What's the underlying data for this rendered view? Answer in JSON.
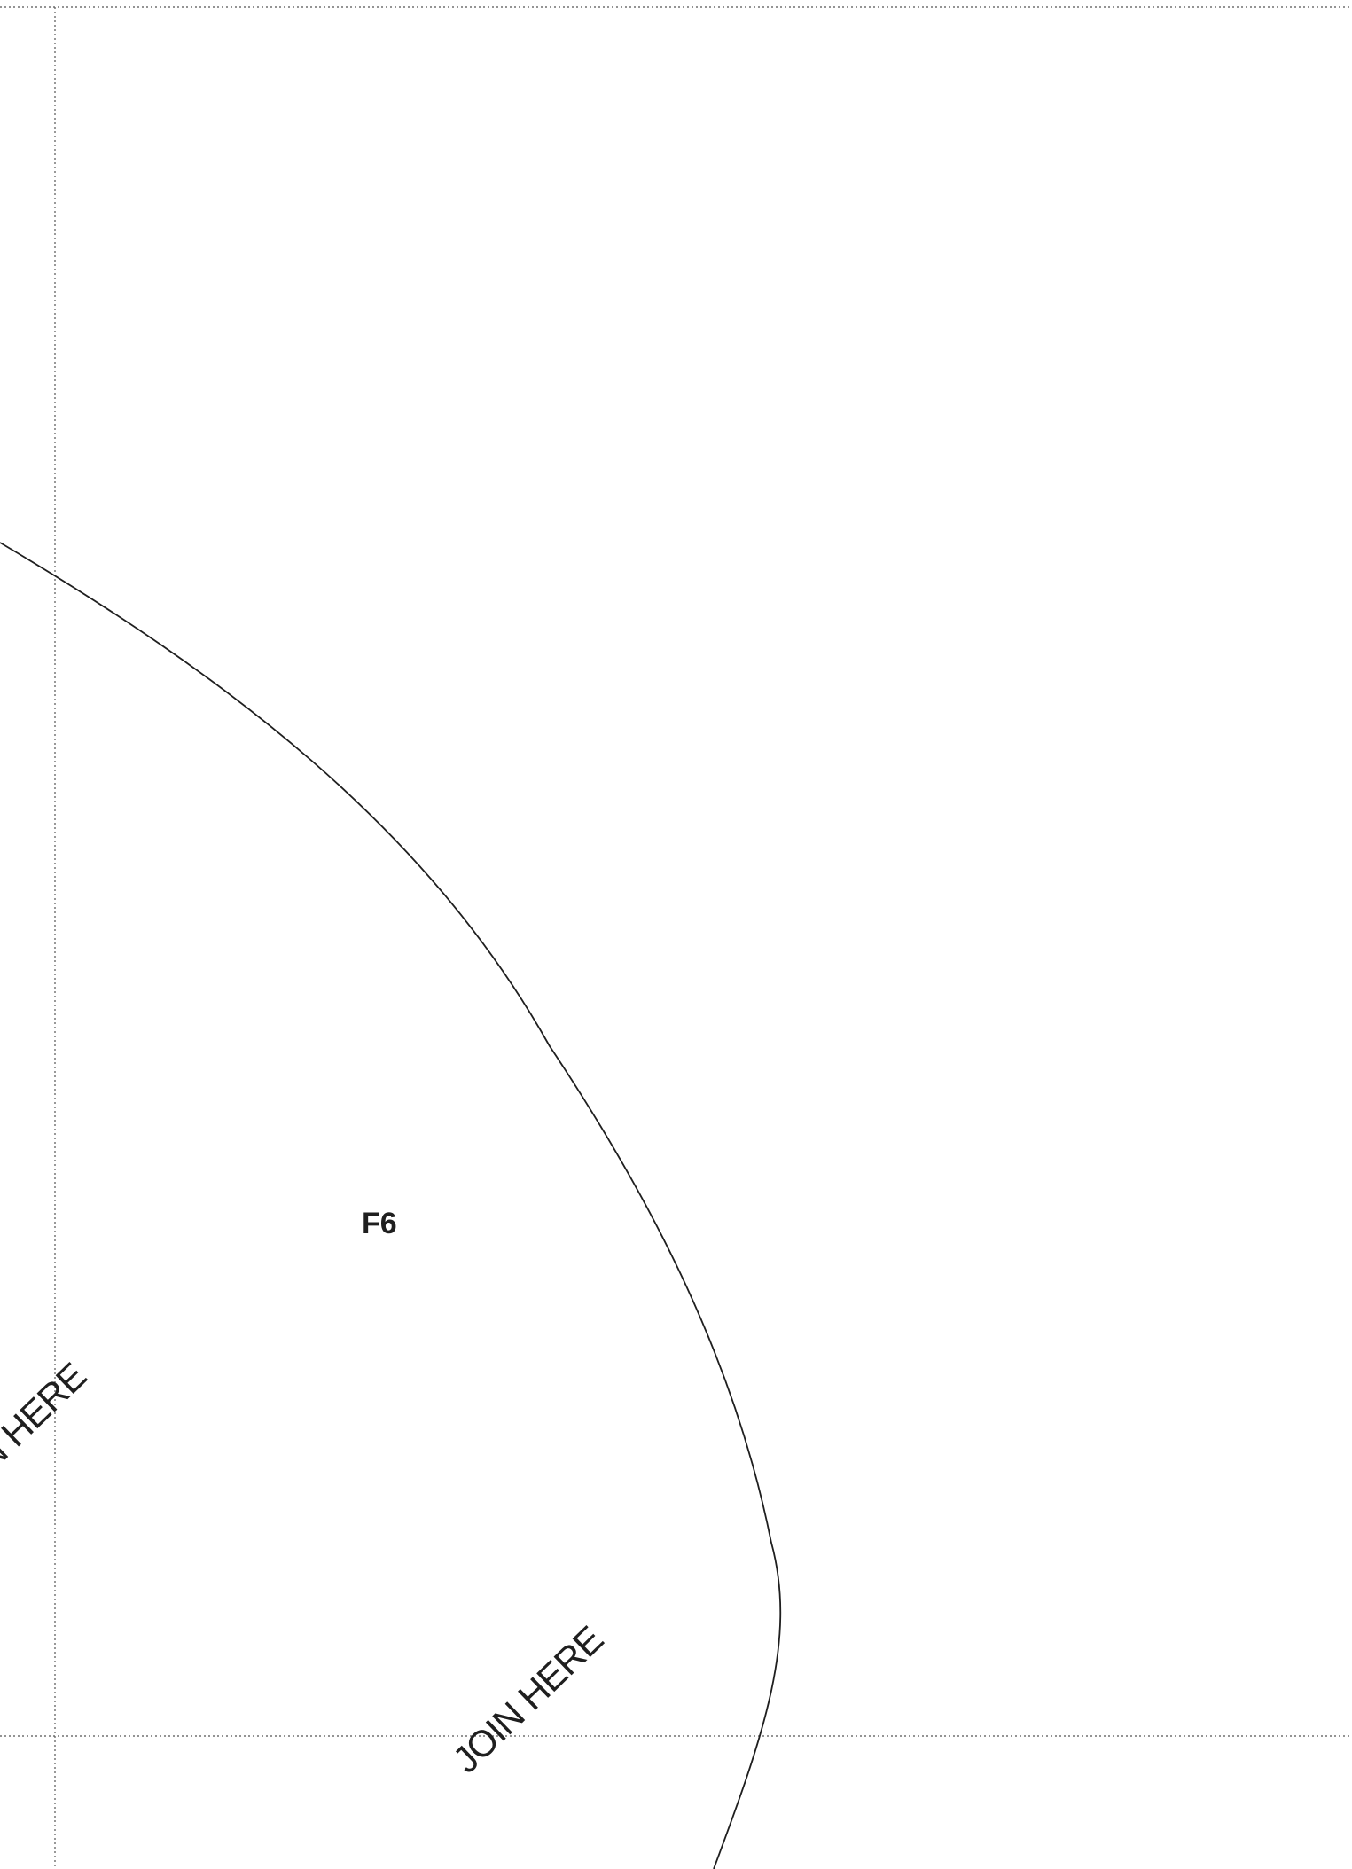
{
  "colors": {
    "background": "#ffffff",
    "guide_line": "#555555",
    "cut_line": "#1f1f1f",
    "text": "#1f1f1f"
  },
  "pattern": {
    "piece_label": "F6",
    "join_labels": {
      "left": "JOIN HERE",
      "bottom": "JOIN HERE"
    }
  }
}
